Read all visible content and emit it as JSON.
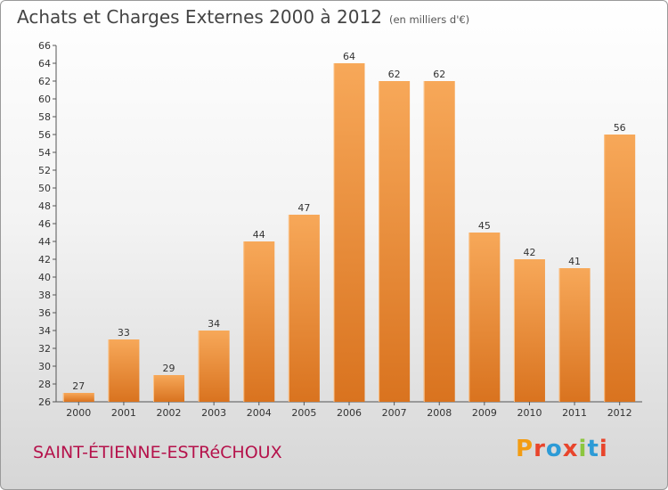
{
  "header": {
    "title": "Achats et Charges Externes 2000 à 2012",
    "subtitle": "(en milliers d'€)"
  },
  "footer": {
    "place": "SAINT-ÉTIENNE-ESTRéCHOUX",
    "logo_text": "Proxiti",
    "logo_colors": [
      "#f39c12",
      "#e8452c",
      "#2d9bd6",
      "#e8452c",
      "#8cc63f",
      "#2d9bd6",
      "#e8452c"
    ]
  },
  "colors": {
    "bar_light": "#f7a859",
    "bar_dark": "#d9731f",
    "axis": "#555555",
    "text": "#333333"
  },
  "chart_data": {
    "type": "bar",
    "title": "Achats et Charges Externes 2000 à 2012",
    "subtitle": "(en milliers d'€)",
    "categories": [
      "2000",
      "2001",
      "2002",
      "2003",
      "2004",
      "2005",
      "2006",
      "2007",
      "2008",
      "2009",
      "2010",
      "2011",
      "2012"
    ],
    "values": [
      27,
      33,
      29,
      34,
      44,
      47,
      64,
      62,
      62,
      45,
      42,
      41,
      56
    ],
    "ylim": [
      26,
      66
    ],
    "yticks": [
      26,
      28,
      30,
      32,
      34,
      36,
      38,
      40,
      42,
      44,
      46,
      48,
      50,
      52,
      54,
      56,
      58,
      60,
      62,
      64,
      66
    ],
    "grid": false,
    "data_labels": true
  }
}
